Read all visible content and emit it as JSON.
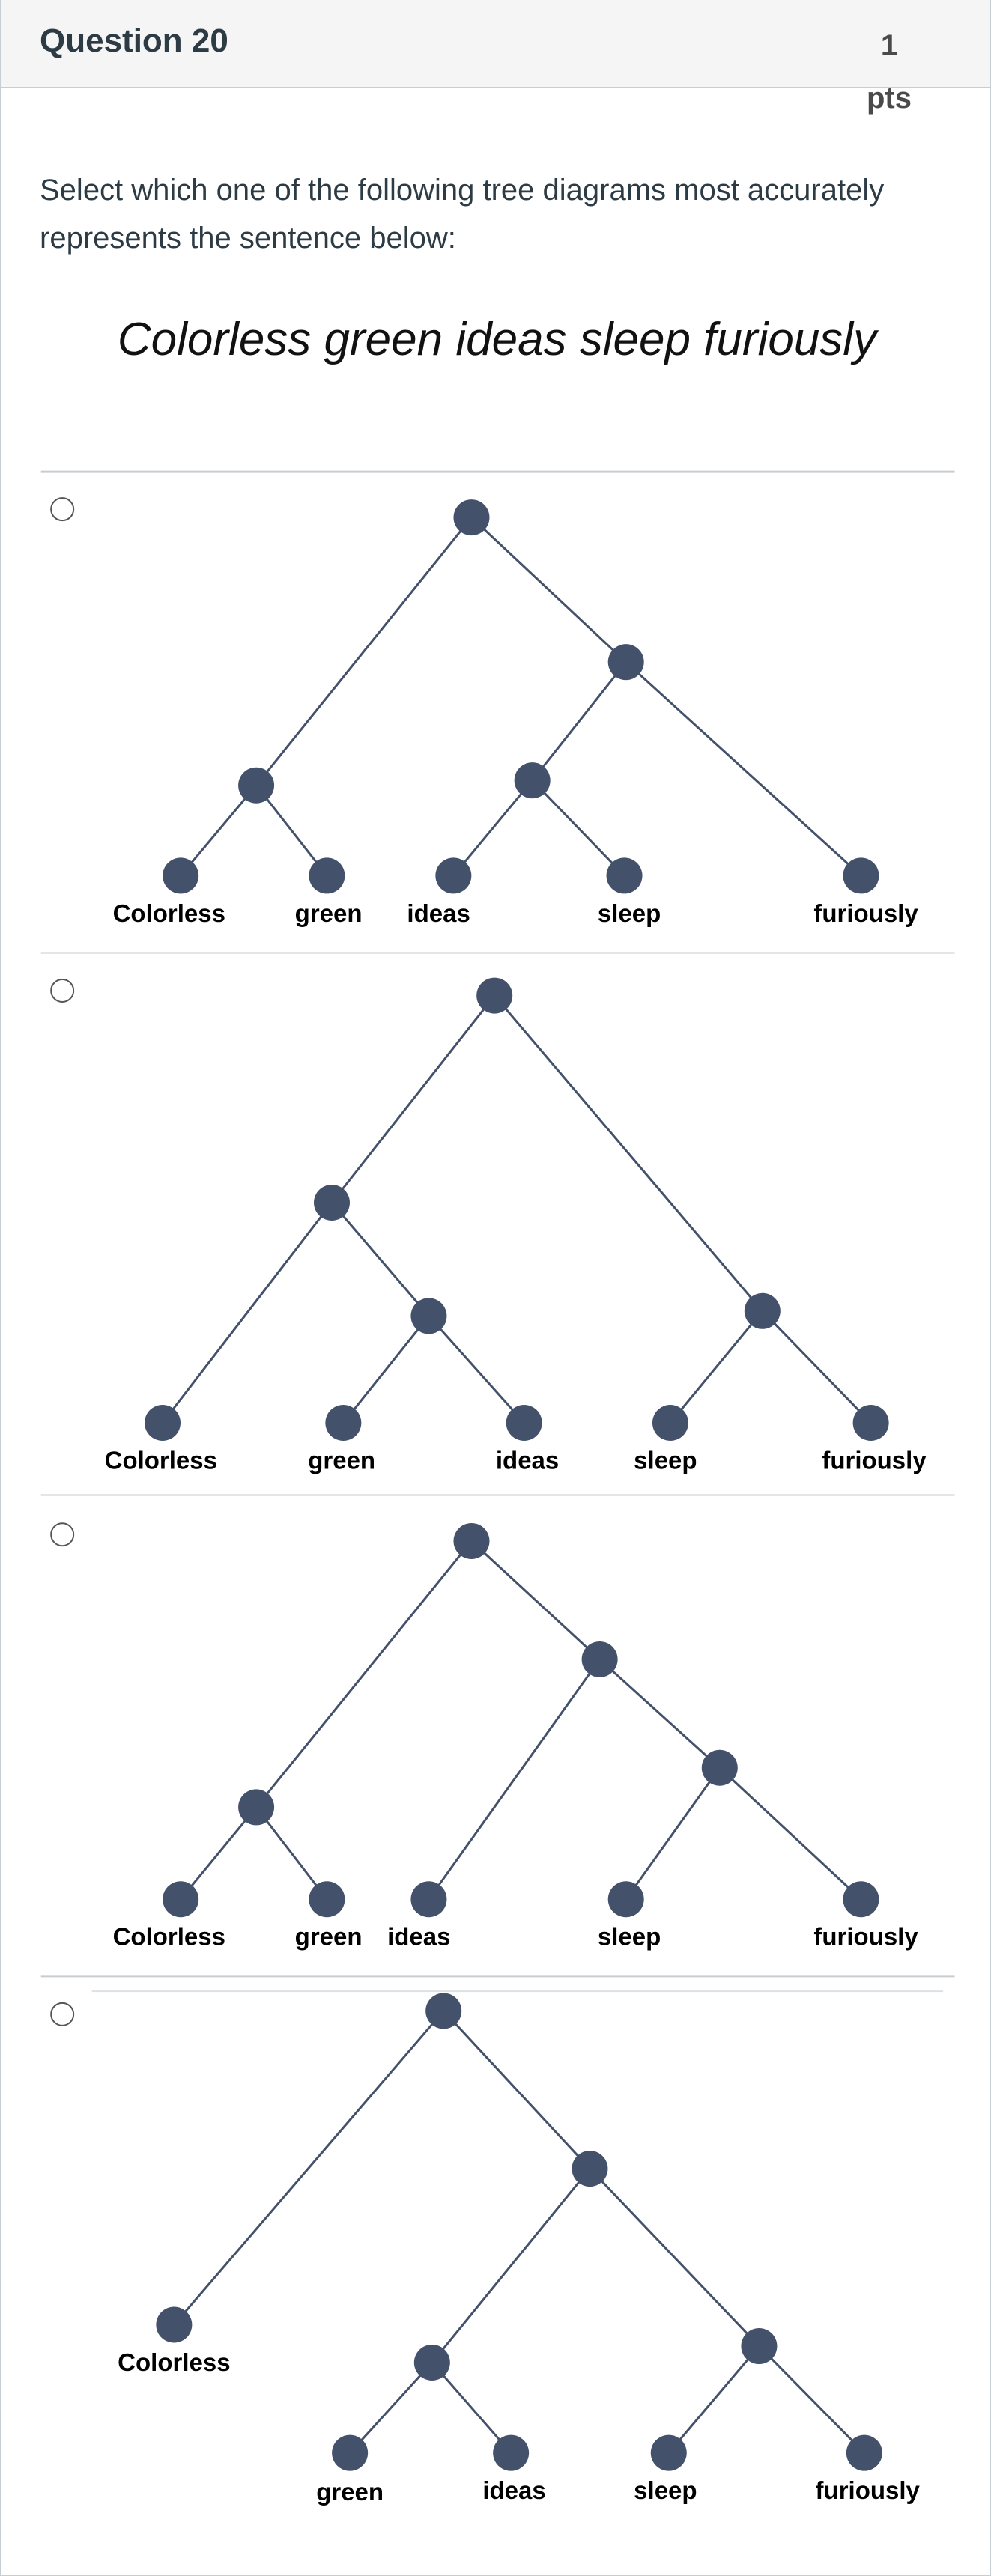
{
  "header": {
    "title": "Question 20",
    "points": "1 pts"
  },
  "prompt": "Select which one of the following tree diagrams most accurately represents the sentence below:",
  "sentence": "Colorless green ideas sleep furiously",
  "options": [
    {
      "words": [
        "Colorless",
        "green",
        "ideas",
        "sleep",
        "furiously"
      ]
    },
    {
      "words": [
        "Colorless",
        "green",
        "ideas",
        "sleep",
        "furiously"
      ]
    },
    {
      "words": [
        "Colorless",
        "green",
        "ideas",
        "sleep",
        "furiously"
      ]
    },
    {
      "words": [
        "Colorless",
        "green",
        "ideas",
        "sleep",
        "furiously"
      ]
    }
  ]
}
